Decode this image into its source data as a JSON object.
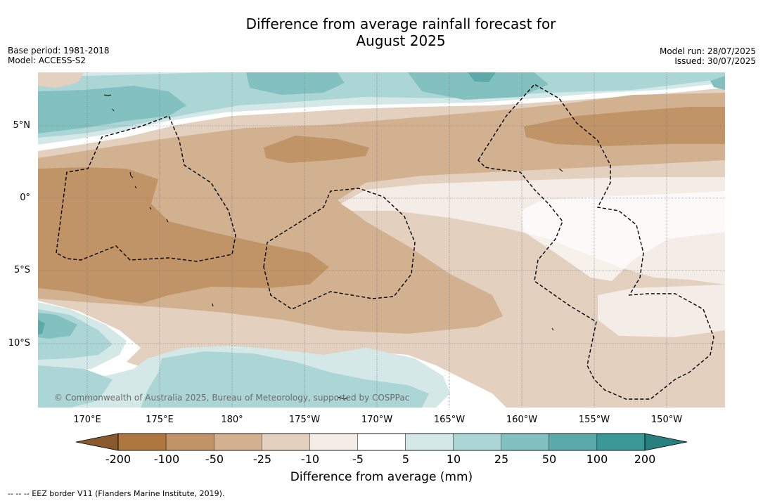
{
  "title_line1": "Difference from average rainfall forecast for",
  "title_line2": "August 2025",
  "base_period": "Base period: 1981-2018",
  "model": "Model: ACCESS-S2",
  "model_run": "Model run: 28/07/2025",
  "issued": "Issued: 30/07/2025",
  "lat_labels": [
    "5°N",
    "0°",
    "5°S",
    "10°S"
  ],
  "lon_labels": [
    "170°E",
    "175°E",
    "180°",
    "175°W",
    "170°W",
    "165°W",
    "160°W",
    "155°W",
    "150°W"
  ],
  "colorbar": {
    "title": "Difference from average (mm)",
    "ticks": [
      "-200",
      "-100",
      "-50",
      "-25",
      "-10",
      "-5",
      "5",
      "10",
      "25",
      "50",
      "100",
      "200"
    ],
    "colors": [
      "#8a5a2e",
      "#ad773f",
      "#c09467",
      "#d2b190",
      "#e3d0bf",
      "#f4ece7",
      "#ffffff",
      "#d4e9e7",
      "#acd6d5",
      "#83c1c0",
      "#5ba9a8",
      "#3a9896",
      "#27807f"
    ]
  },
  "copyright": "© Commonwealth of Australia 2025, Bureau of Meteorology, supported by COSPPac",
  "footnote": "-- -- -- EEZ border V11 (Flanders Marine Institute, 2019)."
}
